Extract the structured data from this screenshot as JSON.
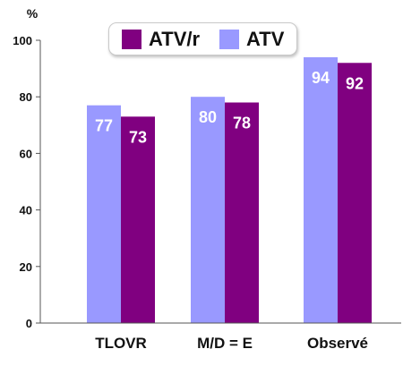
{
  "chart_data": {
    "type": "bar",
    "ylabel": "%",
    "ylim": [
      0,
      100
    ],
    "yticks": [
      0,
      20,
      40,
      60,
      80,
      100
    ],
    "categories": [
      "TLOVR",
      "M/D = E",
      "Observé"
    ],
    "series": [
      {
        "name": "ATV",
        "values": [
          77,
          80,
          94
        ],
        "color": "#9999ff",
        "labels": [
          "77",
          "80",
          "94"
        ]
      },
      {
        "name": "ATV/r",
        "values": [
          73,
          78,
          92
        ],
        "color": "#800080",
        "labels": [
          "73",
          "78",
          "92"
        ]
      }
    ],
    "legend": {
      "placement": "top-center",
      "order": [
        "ATV/r",
        "ATV"
      ]
    },
    "grid": false
  }
}
